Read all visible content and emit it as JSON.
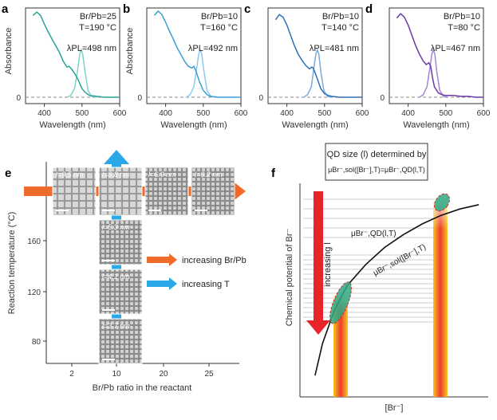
{
  "chart_data": [
    {
      "type": "line",
      "panel": "a",
      "xlabel": "Wavelength (nm)",
      "ylabel": "Absorbance",
      "xlim": [
        350,
        600
      ],
      "xticks": [
        "400",
        "500",
        "600"
      ],
      "yticks": [
        "0"
      ],
      "annotation_lines": [
        "Br/Pb=25",
        "T=190 °C"
      ],
      "peak_label": "λPL=498 nm",
      "colors": {
        "absorbance": "#2aa39a",
        "pl": "#7fd3c8"
      },
      "absorbance": {
        "x": [
          370,
          380,
          390,
          400,
          410,
          420,
          430,
          440,
          450,
          460,
          465,
          470,
          480,
          490,
          500,
          510,
          520,
          540,
          560,
          580,
          600
        ],
        "y": [
          0.95,
          0.99,
          0.95,
          0.85,
          0.76,
          0.68,
          0.6,
          0.52,
          0.42,
          0.35,
          0.36,
          0.34,
          0.28,
          0.2,
          0.1,
          0.05,
          0.02,
          0.01,
          0.0,
          0.0,
          0.0
        ]
      },
      "pl": {
        "x": [
          460,
          470,
          480,
          488,
          494,
          498,
          502,
          508,
          516,
          525,
          540
        ],
        "y": [
          0.0,
          0.02,
          0.1,
          0.3,
          0.5,
          0.55,
          0.5,
          0.3,
          0.08,
          0.01,
          0.0
        ]
      }
    },
    {
      "type": "line",
      "panel": "b",
      "xlabel": "Wavelength (nm)",
      "ylabel": "Absorbance",
      "xlim": [
        350,
        600
      ],
      "xticks": [
        "400",
        "500",
        "600"
      ],
      "yticks": [
        "0"
      ],
      "annotation_lines": [
        "Br/Pb=10",
        "T=160 °C"
      ],
      "peak_label": "λPL=492 nm",
      "colors": {
        "absorbance": "#3a9fd8",
        "pl": "#8ccbee"
      },
      "absorbance": {
        "x": [
          370,
          380,
          390,
          400,
          410,
          420,
          430,
          440,
          450,
          460,
          470,
          475,
          480,
          490,
          500,
          510,
          520,
          540,
          560,
          580,
          600
        ],
        "y": [
          0.95,
          1.0,
          0.96,
          0.87,
          0.77,
          0.68,
          0.58,
          0.5,
          0.42,
          0.36,
          0.34,
          0.36,
          0.31,
          0.18,
          0.08,
          0.03,
          0.01,
          0.0,
          0.0,
          0.0,
          0.0
        ]
      },
      "pl": {
        "x": [
          455,
          465,
          475,
          483,
          488,
          492,
          496,
          502,
          510,
          520,
          535
        ],
        "y": [
          0.0,
          0.03,
          0.12,
          0.35,
          0.5,
          0.55,
          0.5,
          0.3,
          0.08,
          0.01,
          0.0
        ]
      }
    },
    {
      "type": "line",
      "panel": "c",
      "xlabel": "Wavelength (nm)",
      "ylabel": "",
      "xlim": [
        350,
        600
      ],
      "xticks": [
        "400",
        "500",
        "600"
      ],
      "yticks": [
        "0"
      ],
      "annotation_lines": [
        "Br/Pb=10",
        "T=140 °C"
      ],
      "peak_label": "λPL=481 nm",
      "colors": {
        "absorbance": "#2e6fb8",
        "pl": "#7aa9dc"
      },
      "absorbance": {
        "x": [
          370,
          380,
          390,
          400,
          410,
          420,
          430,
          440,
          450,
          460,
          466,
          470,
          478,
          490,
          500,
          510,
          520,
          540,
          560,
          580,
          600
        ],
        "y": [
          0.9,
          0.96,
          0.93,
          0.84,
          0.72,
          0.6,
          0.5,
          0.43,
          0.37,
          0.33,
          0.35,
          0.34,
          0.25,
          0.1,
          0.04,
          0.02,
          0.01,
          0.0,
          0.0,
          0.0,
          0.0
        ]
      },
      "pl": {
        "x": [
          445,
          455,
          465,
          472,
          477,
          481,
          485,
          490,
          498,
          508,
          520
        ],
        "y": [
          0.0,
          0.03,
          0.12,
          0.35,
          0.5,
          0.55,
          0.5,
          0.3,
          0.08,
          0.01,
          0.0
        ]
      }
    },
    {
      "type": "line",
      "panel": "d",
      "xlabel": "Wavelength (nm)",
      "ylabel": "",
      "xlim": [
        350,
        600
      ],
      "xticks": [
        "400",
        "500",
        "600"
      ],
      "yticks": [
        "0"
      ],
      "annotation_lines": [
        "Br/Pb=10",
        "T=80 °C"
      ],
      "peak_label": "λPL=467 nm",
      "colors": {
        "absorbance": "#6a3aa8",
        "pl": "#a585d4"
      },
      "absorbance": {
        "x": [
          370,
          380,
          390,
          400,
          410,
          420,
          430,
          440,
          448,
          455,
          460,
          465,
          470,
          480,
          490,
          500,
          520,
          540,
          560,
          580,
          600
        ],
        "y": [
          0.92,
          0.97,
          0.93,
          0.84,
          0.72,
          0.6,
          0.5,
          0.42,
          0.38,
          0.4,
          0.36,
          0.22,
          0.12,
          0.05,
          0.03,
          0.02,
          0.02,
          0.01,
          0.01,
          0.0,
          0.0
        ]
      },
      "pl": {
        "x": [
          430,
          440,
          450,
          458,
          463,
          467,
          471,
          476,
          484,
          494,
          505
        ],
        "y": [
          0.0,
          0.03,
          0.12,
          0.35,
          0.5,
          0.55,
          0.5,
          0.3,
          0.08,
          0.01,
          0.0
        ]
      }
    },
    {
      "type": "scatter",
      "panel": "e",
      "xlabel": "Br/Pb ratio in the reactant",
      "ylabel": "Reaction temperature (°C)",
      "xlim": [
        0,
        30
      ],
      "ylim": [
        60,
        200
      ],
      "xticks": [
        "2",
        "10",
        "20",
        "25"
      ],
      "yticks": [
        "80",
        "120",
        "160",
        "190"
      ],
      "row_tiles": [
        {
          "size_label": "l=9.5 nm",
          "br_pb": 2,
          "temp": 190
        },
        {
          "size_label": "l=8.8 nm",
          "br_pb": 10,
          "temp": 190
        },
        {
          "size_label": "l=6.9 nm",
          "br_pb": 20,
          "temp": 190
        },
        {
          "size_label": "l=6.2 nm",
          "br_pb": 25,
          "temp": 190
        }
      ],
      "column_tiles": [
        {
          "size_label": "l=5.3 nm",
          "br_pb": 10,
          "temp": 160
        },
        {
          "size_label": "l=4.1 nm",
          "br_pb": 10,
          "temp": 120
        },
        {
          "size_label": "l=3.7 nm",
          "br_pb": 10,
          "temp": 80
        }
      ],
      "legend": [
        {
          "label": "increasing Br/Pb",
          "color": "#f06a2a"
        },
        {
          "label": "increasing T",
          "color": "#2aa8e8"
        }
      ]
    },
    {
      "type": "line",
      "panel": "f",
      "xlabel": "[Br⁻]",
      "ylabel": "Chemical potential of Br⁻",
      "box_title": "QD size (l) determined by",
      "box_equation": "μBr⁻,sol([Br⁻],T)=μBr⁻,QD(l,T)",
      "qd_label": "μBr⁻,QD(l,T)",
      "sol_label": "μBr⁻,sol([Br⁻],T)",
      "arrow_label": "increasing l",
      "curve": {
        "x": [
          0.08,
          0.12,
          0.18,
          0.25,
          0.35,
          0.45,
          0.55,
          0.65,
          0.75,
          0.85,
          0.95
        ],
        "y": [
          0.1,
          0.25,
          0.4,
          0.52,
          0.62,
          0.7,
          0.76,
          0.81,
          0.85,
          0.88,
          0.9
        ]
      }
    }
  ]
}
